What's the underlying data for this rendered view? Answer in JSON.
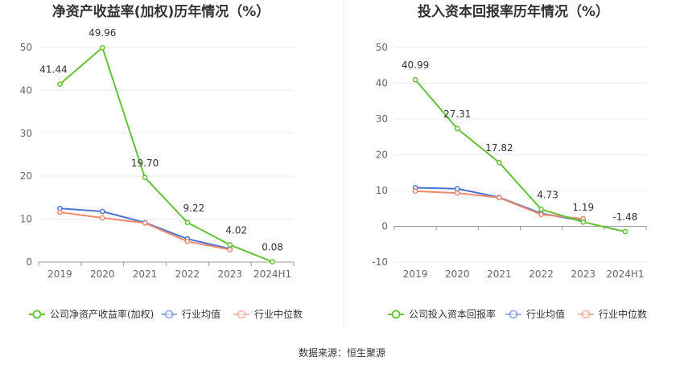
{
  "colors": {
    "company": "#62c234",
    "industry_avg": "#4a74d6",
    "industry_median": "#f08a6a",
    "grid": "#e8ebf3",
    "axis": "#999999",
    "divider": "#e6e6e6"
  },
  "chart_data": [
    {
      "type": "line",
      "title": "净资产收益率(加权)历年情况（%）",
      "categories": [
        "2019",
        "2020",
        "2021",
        "2022",
        "2023",
        "2024H1"
      ],
      "yticks": [
        "0",
        "10",
        "20",
        "30",
        "40",
        "50"
      ],
      "ylim": [
        0,
        54
      ],
      "legend_position": "bottom",
      "grid": true,
      "series": [
        {
          "name": "公司净资产收益率(加权)",
          "color": "#62c234",
          "values": [
            41.44,
            49.96,
            19.7,
            9.22,
            4.02,
            0.08
          ],
          "labels": [
            "41.44",
            "49.96",
            "19.70",
            "9.22",
            "4.02",
            "0.08"
          ]
        },
        {
          "name": "行业均值",
          "color": "#4a74d6",
          "values": [
            12.5,
            11.8,
            9.2,
            5.4,
            3.1,
            null
          ]
        },
        {
          "name": "行业中位数",
          "color": "#f08a6a",
          "values": [
            11.6,
            10.3,
            9.1,
            4.8,
            2.9,
            null
          ]
        }
      ]
    },
    {
      "type": "line",
      "title": "投入资本回报率历年情况（%）",
      "categories": [
        "2019",
        "2020",
        "2021",
        "2022",
        "2023",
        "2024H1"
      ],
      "yticks": [
        "-10",
        "0",
        "10",
        "20",
        "30",
        "40",
        "50"
      ],
      "ylim": [
        -10,
        50
      ],
      "legend_position": "bottom",
      "grid": true,
      "series": [
        {
          "name": "公司投入资本回报率",
          "color": "#62c234",
          "values": [
            40.99,
            27.31,
            17.82,
            4.73,
            1.19,
            -1.48
          ],
          "labels": [
            "40.99",
            "27.31",
            "17.82",
            "4.73",
            "1.19",
            "-1.48"
          ]
        },
        {
          "name": "行业均值",
          "color": "#4a74d6",
          "values": [
            10.8,
            10.5,
            8.1,
            3.6,
            1.5,
            null
          ]
        },
        {
          "name": "行业中位数",
          "color": "#f08a6a",
          "values": [
            9.8,
            9.3,
            8.0,
            3.3,
            2.1,
            null
          ]
        }
      ]
    }
  ],
  "source": "数据来源：恒生聚源"
}
